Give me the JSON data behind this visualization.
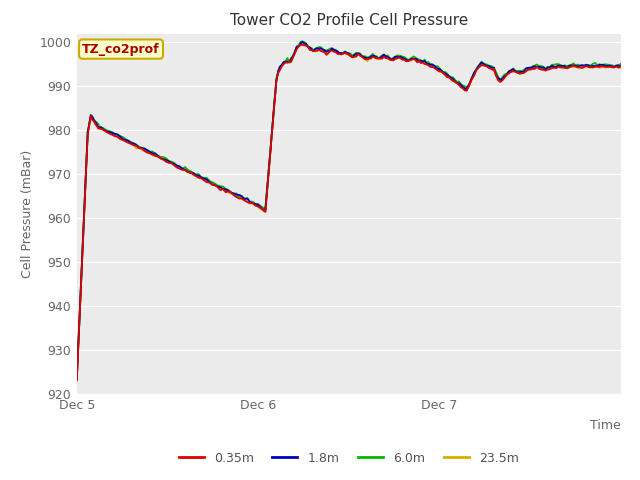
{
  "title": "Tower CO2 Profile Cell Pressure",
  "ylabel": "Cell Pressure (mBar)",
  "xlabel": "Time",
  "ylim": [
    920,
    1002
  ],
  "yticks": [
    920,
    930,
    940,
    950,
    960,
    970,
    980,
    990,
    1000
  ],
  "xtick_positions": [
    0,
    1,
    2
  ],
  "xtick_labels": [
    "Dec 5",
    "Dec 6",
    "Dec 7"
  ],
  "xlim": [
    0,
    3.0
  ],
  "background_color": "#ebebeb",
  "figure_color": "#ffffff",
  "annotation_text": "TZ_co2prof",
  "annotation_fg": "#aa0000",
  "annotation_bg": "#ffffcc",
  "annotation_edge": "#ccaa00",
  "series_colors": [
    "#dd0000",
    "#0000bb",
    "#00bb00",
    "#ddaa00"
  ],
  "series_labels": [
    "0.35m",
    "1.8m",
    "6.0m",
    "23.5m"
  ],
  "series_lw": 1.3,
  "title_fontsize": 11,
  "tick_fontsize": 9,
  "ylabel_fontsize": 9,
  "legend_fontsize": 9
}
